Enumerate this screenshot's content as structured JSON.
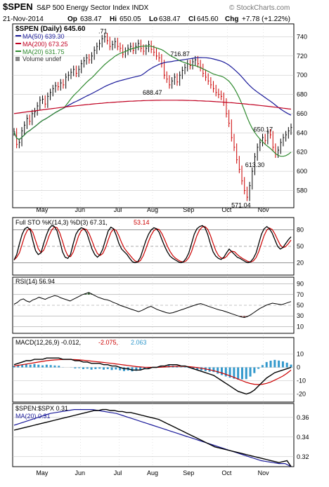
{
  "header": {
    "symbol": "$SPEN",
    "name": "S&P 500 Energy Sector Index INDX",
    "watermark": "© StockCharts.com",
    "date": "21-Nov-2014",
    "op_label": "Op",
    "op": "638.47",
    "hi_label": "Hi",
    "hi": "650.05",
    "lo_label": "Lo",
    "lo": "638.47",
    "cl_label": "Cl",
    "cl": "645.60",
    "chg_label": "Chg",
    "chg": "+7.78 (+1.22%)"
  },
  "colors": {
    "price": "#000000",
    "up_bar": "#000000",
    "down_bar": "#cc0000",
    "ma50": "#1a1a9a",
    "ma200": "#c00020",
    "ma20": "#2f8a2f",
    "stoch_d": "#cc0000",
    "rsi_over": "#3a6a3a",
    "rsi_under": "#9a5a5a",
    "macd_signal": "#cc0000",
    "macd_hist": "#3399cc",
    "ratio_ma": "#1a1a9a",
    "grid": "#bdbdbd",
    "panel_border": "#000000"
  },
  "legend": {
    "price": "$SPEN (Daily) 645.60",
    "ma50": "MA(50) 639.30",
    "ma200": "MA(200) 673.25",
    "ma20": "MA(20) 631.75",
    "volume": "Volume undef"
  },
  "panels": {
    "stoch_label": "Full STO %K(14,3) %D(3) 67.31,",
    "stoch_label_d": "53.14",
    "rsi_label": "RSI(14) 56.94",
    "macd_label_a": "MACD(12,26,9) -0.012,",
    "macd_label_b": "-2.075,",
    "macd_label_c": "2.063",
    "ratio_label": "$SPEN:$SPX 0.31",
    "ratio_ma_label": "MA(20) 0.31"
  },
  "chart_data": {
    "type": "line",
    "price_axis": {
      "ticks": [
        580,
        600,
        620,
        640,
        660,
        680,
        700,
        720,
        740
      ],
      "ylim": [
        565,
        752
      ]
    },
    "month_labels": [
      "May",
      "Jun",
      "Jul",
      "Aug",
      "Sep",
      "Oct",
      "Nov"
    ],
    "annotations": [
      {
        "label": "716.87",
        "value": 716.87
      },
      {
        "label": "688.47",
        "value": 688.47
      },
      {
        "label": "650.17",
        "value": 650.17
      },
      {
        "label": "613.30",
        "value": 613.3
      },
      {
        "label": "571.04",
        "value": 571.04
      },
      {
        "label": ".71",
        "value": 740.71
      }
    ],
    "price_closes": [
      641,
      628,
      630,
      642,
      648,
      655,
      652,
      660,
      662,
      668,
      674,
      675,
      670,
      678,
      682,
      686,
      689,
      688,
      692,
      690,
      698,
      700,
      703,
      706,
      702,
      706,
      712,
      715,
      718,
      716,
      720,
      726,
      730,
      733,
      738,
      740,
      736,
      730,
      732,
      735,
      730,
      728,
      722,
      725,
      728,
      730,
      726,
      730,
      733,
      728,
      725,
      728,
      732,
      727,
      724,
      720,
      718,
      712,
      700,
      696,
      690,
      694,
      698,
      693,
      700,
      705,
      708,
      712,
      710,
      714,
      716,
      712,
      708,
      702,
      698,
      694,
      690,
      686,
      682,
      680,
      678,
      672,
      660,
      650,
      635,
      625,
      612,
      602,
      590,
      580,
      573,
      585,
      600,
      615,
      625,
      630,
      635,
      632,
      640,
      638,
      625,
      618,
      622,
      630,
      635,
      638,
      642,
      645.6
    ],
    "volume": "undef",
    "series": [
      {
        "name": "MA(50)",
        "legend_value": 639.3
      },
      {
        "name": "MA(200)",
        "legend_value": 673.25
      },
      {
        "name": "MA(20)",
        "legend_value": 631.75
      }
    ],
    "stochastics": {
      "axis_ticks": [
        20,
        50,
        80
      ],
      "k": [
        25,
        35,
        55,
        72,
        82,
        85,
        80,
        60,
        42,
        35,
        38,
        55,
        70,
        82,
        88,
        86,
        78,
        60,
        40,
        30,
        28,
        35,
        55,
        72,
        80,
        84,
        82,
        75,
        60,
        45,
        35,
        30,
        35,
        45,
        62,
        78,
        85,
        82,
        70,
        55,
        45,
        40,
        35,
        28,
        22,
        20,
        22,
        30,
        45,
        60,
        72,
        80,
        84,
        82,
        75,
        62,
        50,
        40,
        32,
        28,
        25,
        22,
        20,
        22,
        28,
        38,
        55,
        72,
        82,
        86,
        88,
        84,
        72,
        55,
        40,
        32,
        28,
        26,
        30,
        38,
        45,
        40,
        35,
        30,
        28,
        25,
        22,
        20,
        22,
        28,
        38,
        55,
        72,
        82,
        86,
        82,
        74,
        62,
        50,
        45,
        48,
        55,
        62,
        67.31
      ],
      "d_latest": 53.14
    },
    "rsi": {
      "axis_ticks": [
        10,
        30,
        50,
        70,
        90
      ],
      "values": [
        52,
        55,
        60,
        62,
        58,
        56,
        60,
        62,
        65,
        63,
        61,
        64,
        66,
        68,
        67,
        64,
        62,
        60,
        58,
        61,
        64,
        67,
        70,
        72,
        74,
        71,
        68,
        65,
        63,
        61,
        60,
        58,
        55,
        53,
        50,
        48,
        46,
        44,
        42,
        40,
        38,
        40,
        43,
        46,
        48,
        45,
        42,
        40,
        38,
        36,
        35,
        36,
        38,
        40,
        42,
        44,
        46,
        48,
        50,
        52,
        53,
        51,
        49,
        47,
        45,
        43,
        41,
        40,
        38,
        36,
        34,
        32,
        30,
        28,
        27,
        29,
        32,
        36,
        40,
        44,
        47,
        50,
        52,
        54,
        53,
        52,
        51,
        53,
        55,
        56.94
      ]
    },
    "macd": {
      "axis_ticks": [
        -20,
        -10,
        0,
        10
      ],
      "macd_latest": -0.012,
      "signal_latest": -2.075,
      "hist_latest": 2.063,
      "values": [
        2,
        3,
        4,
        5,
        5,
        6,
        6,
        6,
        7,
        7,
        7,
        7,
        6,
        6,
        6,
        5,
        5,
        4,
        4,
        3,
        3,
        3,
        2,
        2,
        1,
        1,
        0,
        -1,
        -1,
        -2,
        -2,
        -2,
        -1,
        -1,
        0,
        0,
        1,
        1,
        2,
        2,
        2,
        1,
        1,
        0,
        -1,
        -2,
        -3,
        -4,
        -5,
        -6,
        -8,
        -10,
        -12,
        -14,
        -16,
        -18,
        -19,
        -20,
        -19,
        -17,
        -14,
        -11,
        -8,
        -6,
        -4,
        -3,
        -2,
        -1,
        -0.012
      ],
      "signal": [
        1,
        1.5,
        2,
        2.5,
        3,
        3.5,
        4,
        4.5,
        5,
        5.3,
        5.6,
        5.8,
        5.9,
        6,
        5.9,
        5.8,
        5.6,
        5.3,
        5,
        4.7,
        4.3,
        4,
        3.7,
        3.3,
        3,
        2.6,
        2.2,
        1.8,
        1.4,
        1,
        0.6,
        0.3,
        0.1,
        0,
        0,
        0,
        0.1,
        0.3,
        0.5,
        0.7,
        0.8,
        0.8,
        0.7,
        0.5,
        0.2,
        -0.2,
        -0.7,
        -1.2,
        -1.8,
        -2.5,
        -3.3,
        -4.2,
        -5.2,
        -6.3,
        -7.5,
        -8.8,
        -10,
        -11.2,
        -12.1,
        -12.7,
        -12.9,
        -12.7,
        -12,
        -11,
        -9.6,
        -8.1,
        -6.5,
        -4.5,
        -2.075
      ]
    },
    "ratio": {
      "axis_ticks": [
        0.32,
        0.34,
        0.36
      ],
      "ylim": [
        0.312,
        0.372
      ],
      "values": [
        0.347,
        0.348,
        0.349,
        0.35,
        0.351,
        0.352,
        0.353,
        0.354,
        0.355,
        0.356,
        0.357,
        0.358,
        0.359,
        0.36,
        0.361,
        0.362,
        0.363,
        0.364,
        0.365,
        0.366,
        0.367,
        0.367,
        0.368,
        0.368,
        0.367,
        0.367,
        0.366,
        0.366,
        0.365,
        0.365,
        0.364,
        0.363,
        0.362,
        0.361,
        0.36,
        0.359,
        0.358,
        0.356,
        0.354,
        0.352,
        0.35,
        0.348,
        0.346,
        0.344,
        0.342,
        0.34,
        0.338,
        0.336,
        0.334,
        0.332,
        0.33,
        0.329,
        0.328,
        0.327,
        0.326,
        0.325,
        0.324,
        0.323,
        0.322,
        0.321,
        0.32,
        0.319,
        0.318,
        0.317,
        0.316,
        0.315,
        0.314,
        0.315,
        0.316,
        0.31
      ],
      "ma20": [
        0.352,
        0.354,
        0.356,
        0.358,
        0.36,
        0.362,
        0.364,
        0.365,
        0.366,
        0.367,
        0.368,
        0.368,
        0.368,
        0.368,
        0.367,
        0.366,
        0.365,
        0.364,
        0.362,
        0.36,
        0.358,
        0.356,
        0.354,
        0.352,
        0.35,
        0.348,
        0.346,
        0.344,
        0.342,
        0.34,
        0.338,
        0.336,
        0.334,
        0.332,
        0.33,
        0.328,
        0.326,
        0.324,
        0.322,
        0.32,
        0.318,
        0.316,
        0.315,
        0.314,
        0.313,
        0.313,
        0.31
      ]
    }
  }
}
